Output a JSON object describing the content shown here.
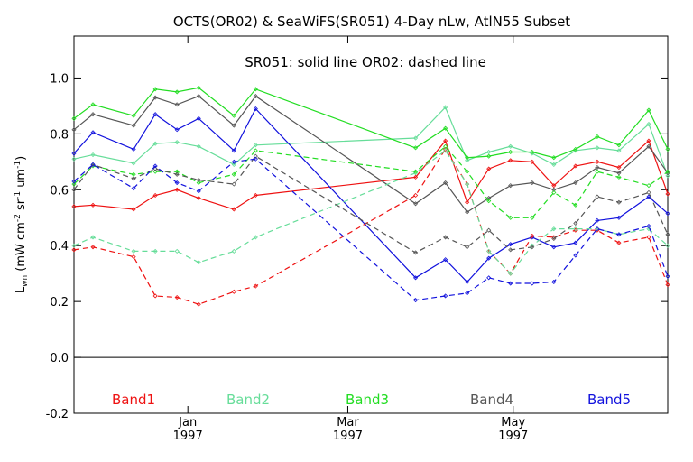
{
  "chart_data": {
    "type": "line",
    "title": "OCTS(OR02) & SeaWiFS(SR051) 4-Day nLw, AtlN55 Subset",
    "subtitle": "SR051: solid line   OR02: dashed line",
    "ylabel": "L",
    "ylabel_sub": "wn",
    "ylabel_units": "(mW cm",
    "ylabel_units_sup1": "-2",
    "ylabel_units_mid": " sr",
    "ylabel_units_sup2": "-1",
    "ylabel_units_mid2": " um",
    "ylabel_units_sup3": "-1",
    "ylabel_units_end": ")",
    "ylim": [
      -0.2,
      1.15
    ],
    "xlim": [
      "1996-11-20",
      "1997-06-27"
    ],
    "yticks": [
      -0.2,
      0.0,
      0.2,
      0.4,
      0.6,
      0.8,
      1.0
    ],
    "ytick_labels": [
      "-0.2",
      "0.0",
      "0.2",
      "0.4",
      "0.6",
      "0.8",
      "1.0"
    ],
    "xticks": [
      {
        "date": "1997-01-01",
        "month": "Jan",
        "year": "1997"
      },
      {
        "date": "1997-03-01",
        "month": "Mar",
        "year": "1997"
      },
      {
        "date": "1997-05-01",
        "month": "May",
        "year": "1997"
      }
    ],
    "grid": false,
    "zero_line": true,
    "legend_position": "bottom inside plot",
    "series": [
      {
        "name": "Band1",
        "color": "#ee1111",
        "style": "solid",
        "x": [
          "1996-11-20",
          "1996-11-27",
          "1996-12-12",
          "1996-12-20",
          "1996-12-28",
          "1997-01-05",
          "1997-01-18",
          "1997-01-26",
          "1997-03-26",
          "1997-04-06",
          "1997-04-14",
          "1997-04-22",
          "1997-04-30",
          "1997-05-08",
          "1997-05-16",
          "1997-05-24",
          "1997-06-01",
          "1997-06-09",
          "1997-06-20",
          "1997-06-27"
        ],
        "values": [
          0.54,
          0.545,
          0.53,
          0.58,
          0.6,
          0.57,
          0.53,
          0.58,
          0.645,
          0.775,
          0.555,
          0.675,
          0.705,
          0.7,
          0.615,
          0.685,
          0.7,
          0.68,
          0.775,
          0.585
        ]
      },
      {
        "name": "Band2",
        "color": "#66dd99",
        "style": "solid",
        "x": [
          "1996-11-20",
          "1996-11-27",
          "1996-12-12",
          "1996-12-20",
          "1996-12-28",
          "1997-01-05",
          "1997-01-18",
          "1997-01-26",
          "1997-03-26",
          "1997-04-06",
          "1997-04-14",
          "1997-04-22",
          "1997-04-30",
          "1997-05-08",
          "1997-05-16",
          "1997-05-24",
          "1997-06-01",
          "1997-06-09",
          "1997-06-20",
          "1997-06-27"
        ],
        "values": [
          0.71,
          0.725,
          0.695,
          0.765,
          0.77,
          0.755,
          0.69,
          0.76,
          0.785,
          0.895,
          0.705,
          0.735,
          0.755,
          0.73,
          0.69,
          0.74,
          0.75,
          0.74,
          0.835,
          0.65
        ]
      },
      {
        "name": "Band3",
        "color": "#22dd22",
        "style": "solid",
        "x": [
          "1996-11-20",
          "1996-11-27",
          "1996-12-12",
          "1996-12-20",
          "1996-12-28",
          "1997-01-05",
          "1997-01-18",
          "1997-01-26",
          "1997-03-26",
          "1997-04-06",
          "1997-04-14",
          "1997-04-22",
          "1997-04-30",
          "1997-05-08",
          "1997-05-16",
          "1997-05-24",
          "1997-06-01",
          "1997-06-09",
          "1997-06-20",
          "1997-06-27"
        ],
        "values": [
          0.855,
          0.905,
          0.865,
          0.96,
          0.95,
          0.965,
          0.865,
          0.96,
          0.75,
          0.82,
          0.715,
          0.72,
          0.735,
          0.735,
          0.715,
          0.745,
          0.79,
          0.76,
          0.885,
          0.745
        ]
      },
      {
        "name": "Band4",
        "color": "#555555",
        "style": "solid",
        "x": [
          "1996-11-20",
          "1996-11-27",
          "1996-12-12",
          "1996-12-20",
          "1996-12-28",
          "1997-01-05",
          "1997-01-18",
          "1997-01-26",
          "1997-03-26",
          "1997-04-06",
          "1997-04-14",
          "1997-04-22",
          "1997-04-30",
          "1997-05-08",
          "1997-05-16",
          "1997-05-24",
          "1997-06-01",
          "1997-06-09",
          "1997-06-20",
          "1997-06-27"
        ],
        "values": [
          0.815,
          0.87,
          0.83,
          0.93,
          0.905,
          0.935,
          0.83,
          0.935,
          0.55,
          0.625,
          0.52,
          0.57,
          0.615,
          0.625,
          0.6,
          0.625,
          0.68,
          0.66,
          0.755,
          0.66
        ]
      },
      {
        "name": "Band5",
        "color": "#1111dd",
        "style": "solid",
        "x": [
          "1996-11-20",
          "1996-11-27",
          "1996-12-12",
          "1996-12-20",
          "1996-12-28",
          "1997-01-05",
          "1997-01-18",
          "1997-01-26",
          "1997-03-26",
          "1997-04-06",
          "1997-04-14",
          "1997-04-22",
          "1997-04-30",
          "1997-05-08",
          "1997-05-16",
          "1997-05-24",
          "1997-06-01",
          "1997-06-09",
          "1997-06-20",
          "1997-06-27"
        ],
        "values": [
          0.73,
          0.805,
          0.745,
          0.87,
          0.815,
          0.855,
          0.74,
          0.89,
          0.285,
          0.35,
          0.27,
          0.355,
          0.405,
          0.43,
          0.395,
          0.41,
          0.49,
          0.5,
          0.575,
          0.515
        ]
      },
      {
        "name": "Band1 OR02",
        "color": "#ee1111",
        "style": "dashed",
        "x": [
          "1996-11-20",
          "1996-11-27",
          "1996-12-12",
          "1996-12-20",
          "1996-12-28",
          "1997-01-05",
          "1997-01-18",
          "1997-01-26",
          "1997-03-26",
          "1997-04-06",
          "1997-04-14",
          "1997-04-22",
          "1997-04-30",
          "1997-05-08",
          "1997-05-16",
          "1997-05-24",
          "1997-06-01",
          "1997-06-09",
          "1997-06-20",
          "1997-06-27"
        ],
        "values": [
          0.385,
          0.395,
          0.36,
          0.22,
          0.215,
          0.19,
          0.235,
          0.255,
          0.58,
          0.745,
          0.62,
          0.38,
          0.3,
          0.435,
          0.43,
          0.455,
          0.455,
          0.41,
          0.43,
          0.26
        ]
      },
      {
        "name": "Band2 OR02",
        "color": "#66dd99",
        "style": "dashed",
        "x": [
          "1996-11-20",
          "1996-11-27",
          "1996-12-12",
          "1996-12-20",
          "1996-12-28",
          "1997-01-05",
          "1997-01-18",
          "1997-01-26",
          "1997-03-26",
          "1997-04-06",
          "1997-04-14",
          "1997-04-22",
          "1997-04-30",
          "1997-05-08",
          "1997-05-16",
          "1997-05-24",
          "1997-06-01",
          "1997-06-09",
          "1997-06-20",
          "1997-06-27"
        ],
        "values": [
          0.4,
          0.43,
          0.38,
          0.38,
          0.38,
          0.34,
          0.38,
          0.43,
          0.66,
          0.74,
          0.62,
          0.38,
          0.3,
          0.4,
          0.46,
          0.46,
          0.46,
          0.44,
          0.46,
          0.4
        ]
      },
      {
        "name": "Band3 OR02",
        "color": "#22dd22",
        "style": "dashed",
        "x": [
          "1996-11-20",
          "1996-11-27",
          "1996-12-12",
          "1996-12-20",
          "1996-12-28",
          "1997-01-05",
          "1997-01-18",
          "1997-01-26",
          "1997-03-26",
          "1997-04-06",
          "1997-04-14",
          "1997-04-22",
          "1997-04-30",
          "1997-05-08",
          "1997-05-16",
          "1997-05-24",
          "1997-06-01",
          "1997-06-09",
          "1997-06-20",
          "1997-06-27"
        ],
        "values": [
          0.62,
          0.685,
          0.655,
          0.665,
          0.665,
          0.625,
          0.655,
          0.74,
          0.665,
          0.755,
          0.665,
          0.56,
          0.5,
          0.5,
          0.59,
          0.545,
          0.665,
          0.645,
          0.615,
          0.665
        ]
      },
      {
        "name": "Band4 OR02",
        "color": "#555555",
        "style": "dashed",
        "x": [
          "1996-11-20",
          "1996-11-27",
          "1996-12-12",
          "1996-12-20",
          "1996-12-28",
          "1997-01-05",
          "1997-01-18",
          "1997-01-26",
          "1997-03-26",
          "1997-04-06",
          "1997-04-14",
          "1997-04-22",
          "1997-04-30",
          "1997-05-08",
          "1997-05-16",
          "1997-05-24",
          "1997-06-01",
          "1997-06-09",
          "1997-06-20",
          "1997-06-27"
        ],
        "values": [
          0.6,
          0.69,
          0.64,
          0.675,
          0.655,
          0.635,
          0.62,
          0.72,
          0.375,
          0.43,
          0.395,
          0.455,
          0.385,
          0.395,
          0.425,
          0.48,
          0.575,
          0.555,
          0.59,
          0.44
        ]
      },
      {
        "name": "Band5 OR02",
        "color": "#1111dd",
        "style": "dashed",
        "x": [
          "1996-11-20",
          "1996-11-27",
          "1996-12-12",
          "1996-12-20",
          "1996-12-28",
          "1997-01-05",
          "1997-01-18",
          "1997-01-26",
          "1997-03-26",
          "1997-04-06",
          "1997-04-14",
          "1997-04-22",
          "1997-04-30",
          "1997-05-08",
          "1997-05-16",
          "1997-05-24",
          "1997-06-01",
          "1997-06-09",
          "1997-06-20",
          "1997-06-27"
        ],
        "values": [
          0.63,
          0.69,
          0.605,
          0.685,
          0.625,
          0.595,
          0.7,
          0.71,
          0.205,
          0.22,
          0.23,
          0.285,
          0.265,
          0.265,
          0.27,
          0.365,
          0.46,
          0.44,
          0.47,
          0.29
        ]
      }
    ],
    "legend": [
      {
        "label": "Band1",
        "color": "#ee1111"
      },
      {
        "label": "Band2",
        "color": "#66dd99"
      },
      {
        "label": "Band3",
        "color": "#22dd22"
      },
      {
        "label": "Band4",
        "color": "#555555"
      },
      {
        "label": "Band5",
        "color": "#1111dd"
      }
    ]
  }
}
